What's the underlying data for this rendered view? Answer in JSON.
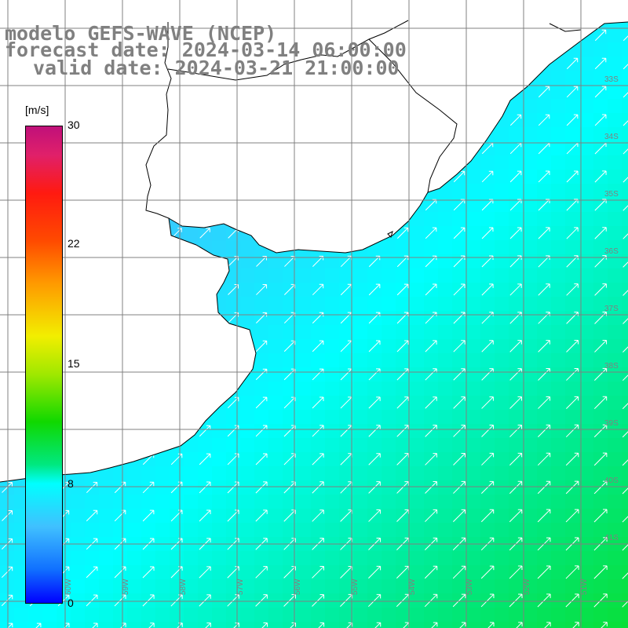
{
  "title": {
    "model": "modelo GEFS-WAVE (NCEP)",
    "forecast": "forecast date: 2024-03-14 06:00:00",
    "valid": "valid date: 2024-03-21 21:00:00"
  },
  "colorbar": {
    "units": "[m/s]",
    "ticks": [
      {
        "label": "30",
        "value": 30
      },
      {
        "label": "22",
        "value": 22
      },
      {
        "label": "15",
        "value": 15
      },
      {
        "label": "8",
        "value": 8
      },
      {
        "label": "0",
        "value": 0
      }
    ],
    "colors": [
      "#0000ff",
      "#1070ff",
      "#40c0ff",
      "#00ffff",
      "#00e880",
      "#10d800",
      "#a0e800",
      "#f2ee00",
      "#ff9a00",
      "#ff4a00",
      "#ff1a10",
      "#e0206a",
      "#c0107a"
    ]
  },
  "map": {
    "variable": "wind speed with direction arrows",
    "land_color": "#ffffff",
    "coast_color": "#000000",
    "grid_color": "#808080",
    "lon_labels": [
      "60W",
      "59W",
      "58W",
      "57W",
      "56W",
      "55W",
      "54W",
      "53W",
      "52W",
      "51W"
    ],
    "lat_labels": [
      "33S",
      "34S",
      "35S",
      "36S",
      "37S",
      "38S",
      "39S",
      "40S",
      "41S"
    ],
    "speed_range_ms": [
      4,
      11.5
    ],
    "arrow_direction": "toward northeast"
  }
}
